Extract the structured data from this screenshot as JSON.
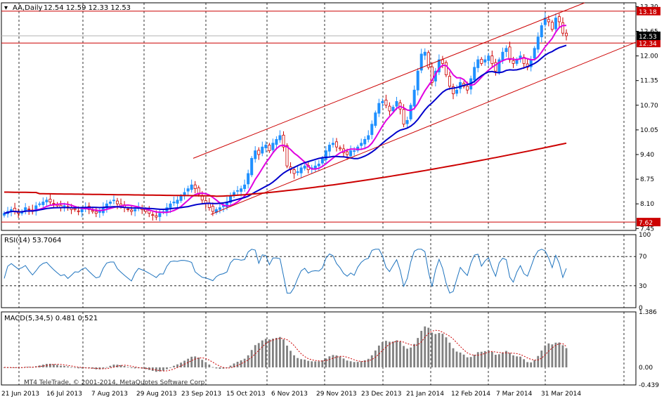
{
  "header": {
    "symbol_label": "AA,Daily",
    "ohlc": "12.54 12.59 12.33 12.53"
  },
  "watermark": "MT4 TeleTrade, © 2001-2014, MetaQuotes Software Corp.",
  "colors": {
    "bull_candle": "#1e90ff",
    "bear_candle": "#cc0000",
    "ma_fast": "#e000e0",
    "ma_mid": "#0000cc",
    "ma_slow": "#cc0000",
    "channel": "#cc0000",
    "hlines": "#cc0000",
    "rsi": "#1e73be",
    "macd_hist": "#808080",
    "macd_signal": "#cc0000"
  },
  "chart_data": [
    {
      "type": "candlestick",
      "title": "AA,Daily",
      "x_tick_labels": [
        "21 Jun 2013",
        "16 Jul 2013",
        "7 Aug 2013",
        "29 Aug 2013",
        "23 Sep 2013",
        "15 Oct 2013",
        "6 Nov 2013",
        "29 Nov 2013",
        "23 Dec 2013",
        "21 Jan 2014",
        "12 Feb 2014",
        "7 Mar 2014",
        "31 Mar 2014"
      ],
      "y_ticks": [
        "13.30",
        "12.65",
        "12.00",
        "11.35",
        "10.70",
        "10.05",
        "9.40",
        "8.75",
        "8.10",
        "7.45"
      ],
      "ylim": [
        7.4,
        13.4
      ],
      "horizontal_lines": [
        {
          "label": "13.18",
          "value": 13.18
        },
        {
          "label": "12.34",
          "value": 12.34
        },
        {
          "label": "7.62",
          "value": 7.62
        }
      ],
      "current_price": {
        "label": "12.53",
        "value": 12.53
      },
      "close_series": [
        7.85,
        7.9,
        7.95,
        7.9,
        7.85,
        7.9,
        8.0,
        7.95,
        7.9,
        8.05,
        8.1,
        8.15,
        8.2,
        8.15,
        8.1,
        8.05,
        8.0,
        8.05,
        8.0,
        7.95,
        7.95,
        7.9,
        7.95,
        8.0,
        7.95,
        7.9,
        7.85,
        7.9,
        8.0,
        8.1,
        8.15,
        8.2,
        8.1,
        8.05,
        8.0,
        7.95,
        7.9,
        7.95,
        8.0,
        7.95,
        7.9,
        7.85,
        7.8,
        7.75,
        7.85,
        7.9,
        8.0,
        8.1,
        8.15,
        8.2,
        8.3,
        8.4,
        8.5,
        8.6,
        8.5,
        8.35,
        8.2,
        8.1,
        8.0,
        7.9,
        7.95,
        8.0,
        8.05,
        8.15,
        8.3,
        8.4,
        8.45,
        8.5,
        8.6,
        8.9,
        9.3,
        9.5,
        9.4,
        9.6,
        9.65,
        9.5,
        9.7,
        9.8,
        9.9,
        9.6,
        9.1,
        9.0,
        8.9,
        8.95,
        9.05,
        9.1,
        9.0,
        9.05,
        9.1,
        9.15,
        9.3,
        9.5,
        9.65,
        9.7,
        9.6,
        9.55,
        9.45,
        9.4,
        9.5,
        9.5,
        9.6,
        9.7,
        9.8,
        9.9,
        10.2,
        10.5,
        10.75,
        10.8,
        10.7,
        10.55,
        10.65,
        10.8,
        10.6,
        10.2,
        10.3,
        10.7,
        11.1,
        11.6,
        12.05,
        12.1,
        11.7,
        11.3,
        11.6,
        11.9,
        11.8,
        11.5,
        11.2,
        11.0,
        11.1,
        11.3,
        11.2,
        11.1,
        11.4,
        11.7,
        11.9,
        11.8,
        11.9,
        12.0,
        11.8,
        11.6,
        11.9,
        12.1,
        12.2,
        11.9,
        11.8,
        11.9,
        12.0,
        11.8,
        11.7,
        11.9,
        12.2,
        12.5,
        12.8,
        13.0,
        12.9,
        12.7,
        13.0,
        12.9,
        12.6,
        12.53
      ],
      "indicators": [
        "MA fast (magenta)",
        "MA mid (blue)",
        "MA slow (red)",
        "trend channel"
      ]
    },
    {
      "type": "line",
      "title": "RSI(14) 53.7064",
      "ylim": [
        0,
        100
      ],
      "y_ticks": [
        "100",
        "70",
        "30",
        "0"
      ],
      "levels": [
        70,
        30
      ],
      "current_value": 53.7064
    },
    {
      "type": "bar",
      "title": "MACD(5,34,5) 0.481 0.521",
      "y_ticks": [
        "1.386",
        "0.00",
        "-0.439"
      ],
      "ylim": [
        -0.439,
        1.386
      ],
      "histogram_current": 0.481,
      "signal_current": 0.521
    }
  ]
}
